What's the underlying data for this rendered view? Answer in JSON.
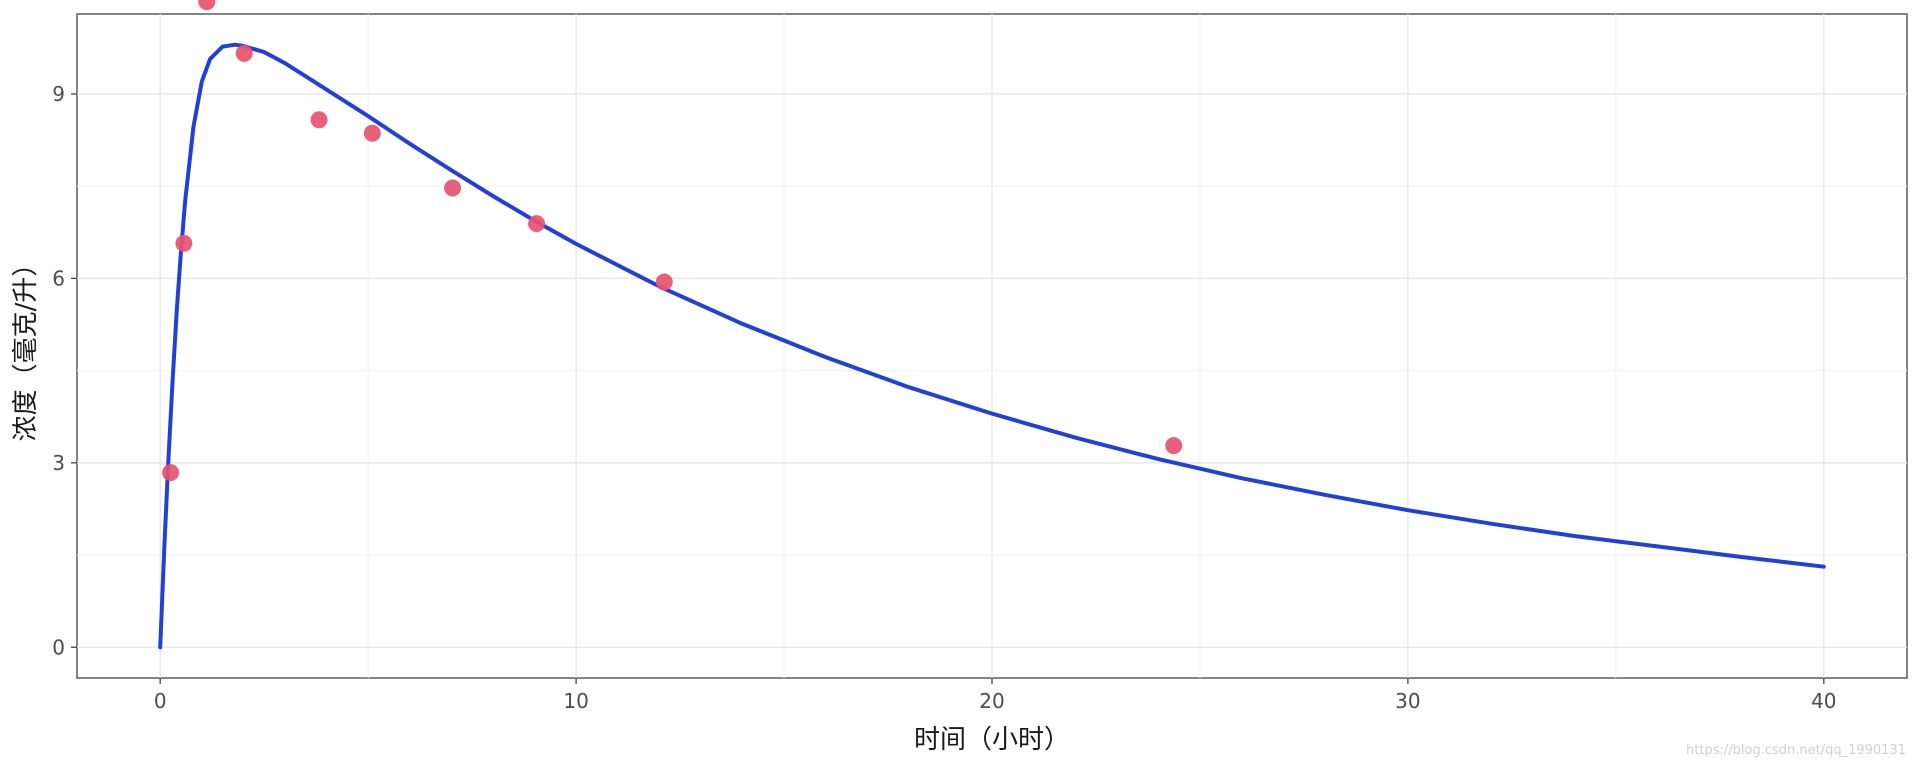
{
  "chart_data": {
    "type": "scatter",
    "title": "",
    "xlabel": "时间（小时）",
    "ylabel": "浓度（毫克/升）",
    "xlim": [
      -2,
      42
    ],
    "ylim": [
      -0.5,
      10.3
    ],
    "x_ticks": [
      0,
      10,
      20,
      30,
      40
    ],
    "y_ticks": [
      0,
      3,
      6,
      9
    ],
    "grid": true,
    "series": [
      {
        "kind": "points",
        "color": "#e8526f",
        "x": [
          0.25,
          0.57,
          1.12,
          2.02,
          3.82,
          5.1,
          7.03,
          9.05,
          12.12,
          24.37
        ],
        "y": [
          2.84,
          6.57,
          10.5,
          9.66,
          8.58,
          8.36,
          7.47,
          6.89,
          5.94,
          3.28
        ]
      },
      {
        "kind": "fitted-curve",
        "color": "#2340d6",
        "x": [
          0,
          0.1,
          0.2,
          0.3,
          0.4,
          0.5,
          0.6,
          0.8,
          1,
          1.2,
          1.5,
          1.8,
          2,
          2.5,
          3,
          4,
          5,
          6,
          7,
          8,
          9,
          10,
          12,
          14,
          16,
          18,
          20,
          22,
          24,
          26,
          28,
          30,
          32,
          34,
          36,
          38,
          40
        ],
        "y": [
          0.0,
          1.62,
          3.08,
          4.37,
          5.49,
          6.44,
          7.25,
          8.47,
          9.2,
          9.57,
          9.77,
          9.8,
          9.78,
          9.68,
          9.5,
          9.07,
          8.64,
          8.19,
          7.76,
          7.34,
          6.94,
          6.56,
          5.87,
          5.26,
          4.72,
          4.23,
          3.8,
          3.41,
          3.06,
          2.75,
          2.48,
          2.23,
          2.01,
          1.81,
          1.64,
          1.47,
          1.31
        ]
      }
    ]
  },
  "watermark": "https://blog.csdn.net/qq_1990131"
}
